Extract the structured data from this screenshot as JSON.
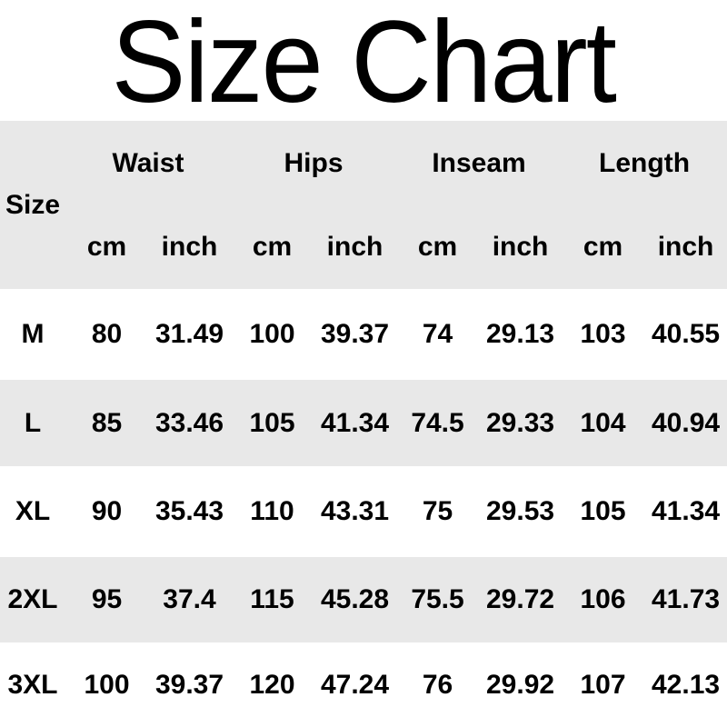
{
  "title": "Size Chart",
  "colors": {
    "background": "#ffffff",
    "band": "#e8e8e8",
    "text": "#000000"
  },
  "table": {
    "size_header": "Size",
    "groups": [
      {
        "label": "Waist"
      },
      {
        "label": "Hips"
      },
      {
        "label": "Inseam"
      },
      {
        "label": "Length"
      }
    ],
    "units": [
      "cm",
      "inch",
      "cm",
      "inch",
      "cm",
      "inch",
      "cm",
      "inch"
    ],
    "rows": [
      {
        "size": "M",
        "values": [
          "80",
          "31.49",
          "100",
          "39.37",
          "74",
          "29.13",
          "103",
          "40.55"
        ]
      },
      {
        "size": "L",
        "values": [
          "85",
          "33.46",
          "105",
          "41.34",
          "74.5",
          "29.33",
          "104",
          "40.94"
        ]
      },
      {
        "size": "XL",
        "values": [
          "90",
          "35.43",
          "110",
          "43.31",
          "75",
          "29.53",
          "105",
          "41.34"
        ]
      },
      {
        "size": "2XL",
        "values": [
          "95",
          "37.4",
          "115",
          "45.28",
          "75.5",
          "29.72",
          "106",
          "41.73"
        ]
      },
      {
        "size": "3XL",
        "values": [
          "100",
          "39.37",
          "120",
          "47.24",
          "76",
          "29.92",
          "107",
          "42.13"
        ]
      }
    ]
  },
  "chart_data": {
    "type": "table",
    "title": "Size Chart",
    "columns": [
      "Size",
      "Waist cm",
      "Waist inch",
      "Hips cm",
      "Hips inch",
      "Inseam cm",
      "Inseam inch",
      "Length cm",
      "Length inch"
    ],
    "rows": [
      [
        "M",
        80,
        31.49,
        100,
        39.37,
        74,
        29.13,
        103,
        40.55
      ],
      [
        "L",
        85,
        33.46,
        105,
        41.34,
        74.5,
        29.33,
        104,
        40.94
      ],
      [
        "XL",
        90,
        35.43,
        110,
        43.31,
        75,
        29.53,
        105,
        41.34
      ],
      [
        "2XL",
        95,
        37.4,
        115,
        45.28,
        75.5,
        29.72,
        106,
        41.73
      ],
      [
        "3XL",
        100,
        39.37,
        120,
        47.24,
        76,
        29.92,
        107,
        42.13
      ]
    ]
  }
}
